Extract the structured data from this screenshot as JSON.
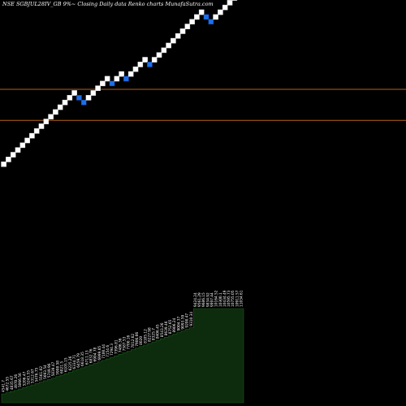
{
  "title": "NSE SGBJUL28IV_GB 9%~  Closing Daily data  Renko  charts MunafaSutra.com",
  "colors": {
    "background": "#000000",
    "up_brick": "#ffffff",
    "down_brick": "#1e6fe8",
    "reference_line": "#b8621b",
    "volume_fill": "#0d2b0d",
    "volume_stroke": "#1b5a1b",
    "volume_label": "#ffffff"
  },
  "chart_data": {
    "type": "renko",
    "xlabel": "",
    "ylabel": "",
    "grid": false,
    "legend": false,
    "bricks": [
      "up",
      "up",
      "up",
      "up",
      "up",
      "up",
      "up",
      "up",
      "up",
      "up",
      "up",
      "up",
      "up",
      "up",
      "up",
      "up",
      "down",
      "down",
      "up",
      "up",
      "up",
      "up",
      "up",
      "down",
      "up",
      "up",
      "down",
      "up",
      "up",
      "up",
      "up",
      "down",
      "up",
      "up",
      "up",
      "up",
      "up",
      "up",
      "up",
      "up",
      "up",
      "up",
      "up",
      "down",
      "down",
      "up",
      "up",
      "up",
      "up",
      "up"
    ],
    "reference_lines": [
      {
        "level_from_bottom_fraction": 0.54
      },
      {
        "level_from_bottom_fraction": 0.36
      }
    ],
    "volume_labels": [
      "4541.7",
      "4672.55",
      "4835.67",
      "4970.26",
      "5066.56",
      "5206.47",
      "5243.55",
      "5312.67",
      "5476.75",
      "5561.02",
      "5693.54",
      "5749.96",
      "5839.47",
      "5908.58",
      "6021.5",
      "6105.15",
      "6225.26",
      "6334.71",
      "6459.79",
      "6618.35",
      "6711.13",
      "6832.76",
      "6904.78",
      "6999.65",
      "7100.44",
      "7154.6",
      "7294.3",
      "7396.81",
      "7486.36",
      "7587.53",
      "7700.16",
      "7812.62",
      "7906.66",
      "8020",
      "8105.12",
      "8227.98",
      "8325.7",
      "8406.45",
      "8543.26",
      "8639.46",
      "8752.65",
      "8906.24",
      "9004.37",
      "9093.59",
      "9200.47",
      "9310.34",
      "9424.24",
      "9561.29",
      "9686.15",
      "9834.92",
      "9997.44",
      "10164.52",
      "10300.1",
      "10434.49",
      "10595.73",
      "10755.05",
      "10911.57",
      "11034.61"
    ]
  }
}
